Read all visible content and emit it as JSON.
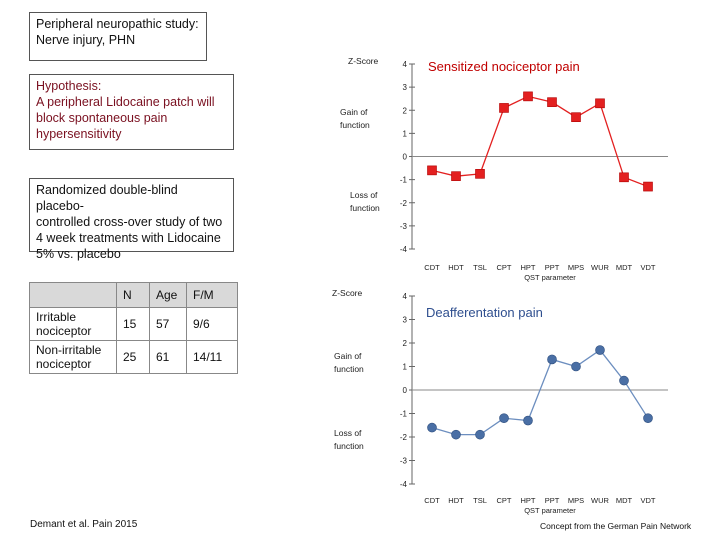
{
  "title_box": {
    "line1": "Peripheral neuropathic study:",
    "line2": "Nerve injury, PHN"
  },
  "hypothesis": {
    "line1": "Hypothesis:",
    "line2": "A peripheral Lidocaine  patch  will",
    "line3": "block spontaneous pain",
    "line4": "hypersensitivity"
  },
  "design": {
    "line1": "Randomized double-blind placebo-",
    "line2": "controlled cross-over study  of two",
    "line3": "4 week treatments with  Lidocaine",
    "line4": "5% vs. placebo"
  },
  "table": {
    "headers": [
      "",
      "N",
      "Age",
      "F/M"
    ],
    "rows": [
      {
        "label1": "Irritable",
        "label2": "nociceptor",
        "n": "15",
        "age": "57",
        "fm": "9/6"
      },
      {
        "label1": "Non-irritable",
        "label2": "nociceptor",
        "n": "25",
        "age": "61",
        "fm": "14/11"
      }
    ]
  },
  "citation": "Demant et al. Pain 2015",
  "credit": "Concept from the German Pain Network",
  "colors": {
    "series1": "#e32020",
    "series2": "#6c8ebf",
    "series2_marker": "#4a6fa5"
  },
  "chart_data": [
    {
      "type": "line",
      "title": "Sensitized nociceptor pain",
      "ylabel": "Z-Score",
      "gain_label": [
        "Gain of",
        "function"
      ],
      "loss_label": [
        "Loss of",
        "function"
      ],
      "xlabel": "QST parameter",
      "ylim": [
        -4,
        4
      ],
      "yticks": [
        "4",
        "3",
        "2",
        "1",
        "0",
        "-1",
        "-2",
        "-3",
        "-4"
      ],
      "categories": [
        "CDT",
        "HDT",
        "TSL",
        "CPT",
        "HPT",
        "PPT",
        "MPS",
        "WUR",
        "MDT",
        "VDT"
      ],
      "values": [
        -0.6,
        -0.85,
        -0.75,
        2.1,
        2.6,
        2.35,
        1.7,
        2.3,
        -0.9,
        -1.3
      ]
    },
    {
      "type": "line",
      "title": "Deafferentation pain",
      "ylabel": "Z-Score",
      "gain_label": [
        "Gain of",
        "function"
      ],
      "loss_label": [
        "Loss of",
        "function"
      ],
      "xlabel": "QST parameter",
      "ylim": [
        -4,
        4
      ],
      "yticks": [
        "4",
        "3",
        "2",
        "1",
        "0",
        "-1",
        "-2",
        "-3",
        "-4"
      ],
      "categories": [
        "CDT",
        "HDT",
        "TSL",
        "CPT",
        "HPT",
        "PPT",
        "MPS",
        "WUR",
        "MDT",
        "VDT"
      ],
      "values": [
        -1.6,
        -1.9,
        -1.9,
        -1.2,
        -1.3,
        1.3,
        1.0,
        1.7,
        0.4,
        -1.2
      ]
    }
  ]
}
